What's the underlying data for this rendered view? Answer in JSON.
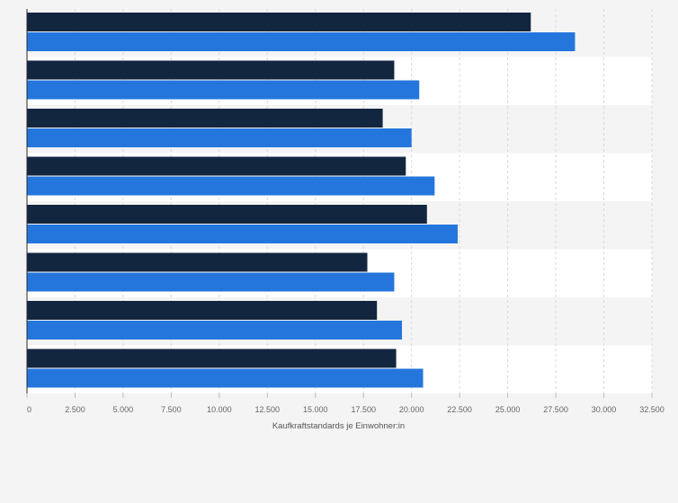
{
  "chart_data": {
    "type": "bar",
    "orientation": "horizontal",
    "categories": [
      "",
      "",
      "",
      "",
      "",
      "",
      "",
      ""
    ],
    "series": [
      {
        "color": "#13263f",
        "values": [
          26200,
          19100,
          18500,
          19700,
          20800,
          17700,
          18200,
          19200
        ]
      },
      {
        "color": "#2576dc",
        "values": [
          28500,
          20400,
          20000,
          21200,
          22400,
          19100,
          19500,
          20600
        ]
      }
    ],
    "xlabel": "Kaufkraftstandards je Einwohner:in",
    "ylabel": "",
    "xlim": [
      0,
      32500
    ],
    "ticks": [
      0,
      2500,
      5000,
      7500,
      10000,
      12500,
      15000,
      17500,
      20000,
      22500,
      25000,
      27500,
      30000,
      32500
    ],
    "tick_labels": [
      "0",
      "2.500",
      "5.000",
      "7.500",
      "10.000",
      "12.500",
      "15.000",
      "17.500",
      "20.000",
      "22.500",
      "25.000",
      "27.500",
      "30.000",
      "32.500"
    ],
    "grid": true,
    "legend": "none"
  }
}
